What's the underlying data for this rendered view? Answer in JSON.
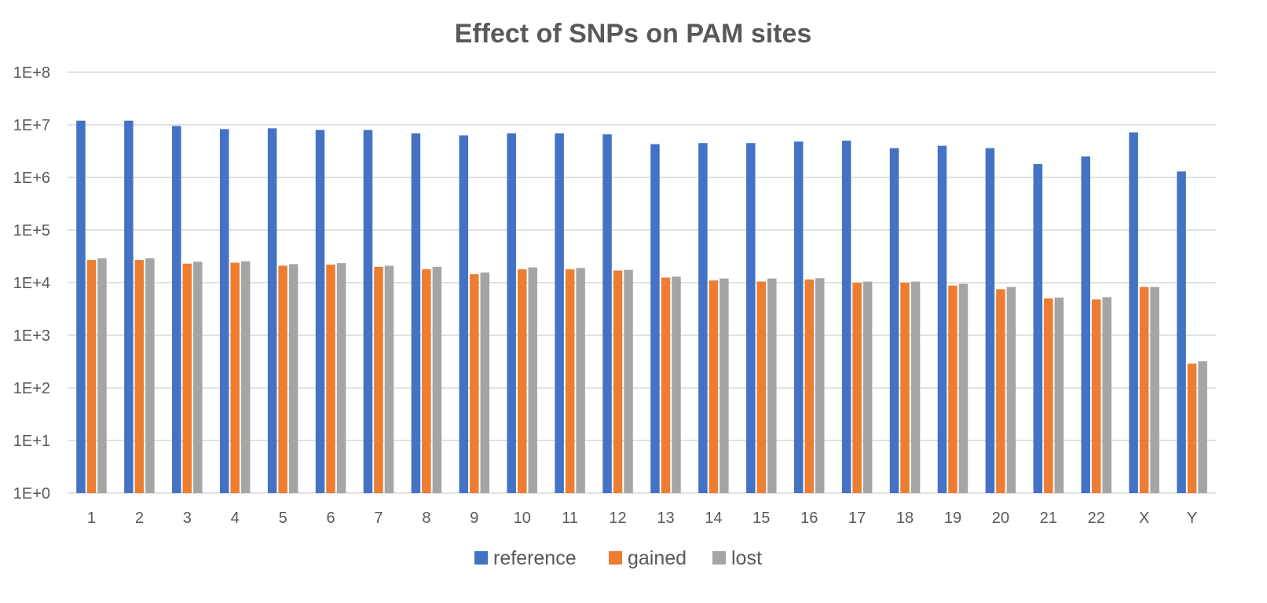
{
  "chart_data": {
    "type": "bar",
    "title": "Effect of SNPs on PAM sites",
    "xlabel": "",
    "ylabel": "",
    "yscale": "log",
    "ylim": [
      1,
      100000000
    ],
    "yticks": [
      1,
      10,
      100,
      1000,
      10000,
      100000,
      1000000,
      10000000,
      100000000
    ],
    "ytick_labels": [
      "1E+0",
      "1E+1",
      "1E+2",
      "1E+3",
      "1E+4",
      "1E+5",
      "1E+6",
      "1E+7",
      "1E+8"
    ],
    "grid": true,
    "legend_position": "bottom",
    "categories": [
      "1",
      "2",
      "3",
      "4",
      "5",
      "6",
      "7",
      "8",
      "9",
      "10",
      "11",
      "12",
      "13",
      "14",
      "15",
      "16",
      "17",
      "18",
      "19",
      "20",
      "21",
      "22",
      "X",
      "Y"
    ],
    "series": [
      {
        "name": "reference",
        "color": "#4472c4",
        "values": [
          12000000,
          12000000,
          9500000,
          8300000,
          8600000,
          8000000,
          8000000,
          6900000,
          6300000,
          6900000,
          6900000,
          6600000,
          4300000,
          4500000,
          4500000,
          4800000,
          5000000,
          3600000,
          4000000,
          3600000,
          1800000,
          2500000,
          7200000,
          1300000
        ]
      },
      {
        "name": "gained",
        "color": "#ed7d31",
        "values": [
          27000,
          27000,
          23000,
          24000,
          21000,
          22000,
          20000,
          18000,
          14500,
          18000,
          18000,
          17000,
          12500,
          11000,
          10500,
          11500,
          10000,
          10000,
          8800,
          7500,
          5000,
          4800,
          8300,
          290
        ]
      },
      {
        "name": "lost",
        "color": "#a5a5a5",
        "values": [
          29000,
          29000,
          25000,
          25500,
          22500,
          23500,
          21000,
          20000,
          15500,
          19500,
          19000,
          17500,
          13000,
          12000,
          12000,
          12200,
          10500,
          10500,
          9500,
          8300,
          5200,
          5300,
          8300,
          320
        ]
      }
    ]
  }
}
